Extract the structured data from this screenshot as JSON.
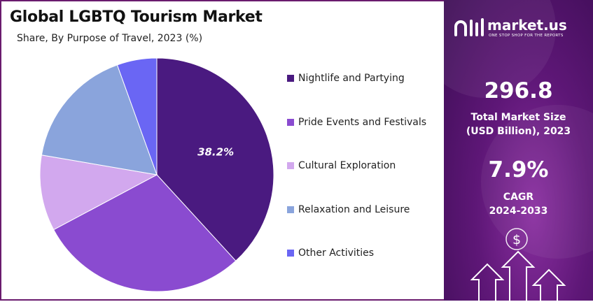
{
  "colors": {
    "nightlife": "#4a1a80",
    "pride": "#8a4bd0",
    "cultural": "#d2a8ee",
    "relaxation": "#8aa4dc",
    "other": "#6a66f4",
    "panel": "#5e1777"
  },
  "chart_data": {
    "type": "pie",
    "title": "Global LGBTQ Tourism Market",
    "subtitle": "Share, By Purpose of Travel, 2023 (%)",
    "legend_position": "right",
    "slices": [
      {
        "label": "Nightlife and Partying",
        "value": 38.2,
        "color": "#4a1a80",
        "data_label": "38.2%"
      },
      {
        "label": "Pride Events and Festivals",
        "value": 29.0,
        "color": "#8a4bd0"
      },
      {
        "label": "Cultural Exploration",
        "value": 10.5,
        "color": "#d2a8ee"
      },
      {
        "label": "Relaxation and Leisure",
        "value": 16.8,
        "color": "#8aa4dc"
      },
      {
        "label": "Other Activities",
        "value": 5.5,
        "color": "#6a66f4"
      }
    ]
  },
  "brand": {
    "name": "market.us",
    "tagline": "ONE STOP SHOP FOR THE REPORTS",
    "icon": "market-us-logo-icon"
  },
  "stats": {
    "market_size_value": "296.8",
    "market_size_label_1": "Total Market Size",
    "market_size_label_2": "(USD Billion), 2023",
    "cagr_value": "7.9%",
    "cagr_label_1": "CAGR",
    "cagr_label_2": "2024-2033"
  },
  "decor": {
    "currency_symbol": "$",
    "icon": "growth-arrows-icon"
  }
}
